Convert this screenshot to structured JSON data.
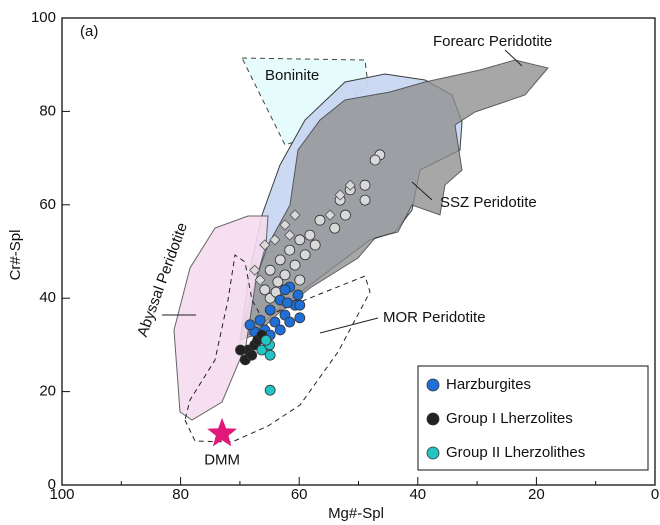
{
  "chart_data": {
    "type": "scatter",
    "panel_label": "(a)",
    "xlabel": "Mg#-Spl",
    "ylabel": "Cr#-Spl",
    "xlim": [
      100,
      0
    ],
    "ylim": [
      0,
      100
    ],
    "xticks": [
      100,
      80,
      60,
      40,
      20,
      0
    ],
    "xticks_minor": [
      90,
      70,
      50,
      30,
      10
    ],
    "yticks": [
      0,
      20,
      40,
      60,
      80,
      100
    ],
    "field_labels": [
      "Forearc Peridotite",
      "Boninite",
      "SSZ Peridotite",
      "Abyssal Peridotite",
      "MOR Peridotite"
    ],
    "series": [
      {
        "marker": "circle",
        "color": "#d9d9d9",
        "x": [
          46.4,
          47.2,
          48.9,
          51.4,
          48.9,
          53.1,
          52.2,
          56.5,
          54.0,
          58.2,
          59.9,
          57.3,
          61.6,
          59.0,
          63.2,
          60.7,
          64.9,
          62.4,
          59.9,
          63.6,
          65.8,
          64.9,
          63.9
        ],
        "y": [
          70.7,
          69.6,
          64.2,
          63.2,
          61.0,
          61.0,
          57.8,
          56.7,
          55.0,
          53.5,
          52.5,
          51.4,
          50.3,
          49.3,
          48.2,
          47.1,
          46.0,
          45.0,
          43.9,
          43.5,
          41.8,
          40.0,
          41.3
        ]
      },
      {
        "marker": "diamond",
        "color": "#d9d9d9",
        "x": [
          51.4,
          53.1,
          60.7,
          62.4,
          64.1,
          65.8,
          61.6,
          54.8,
          67.5,
          66.6
        ],
        "y": [
          64.2,
          62.1,
          57.8,
          55.7,
          52.5,
          51.4,
          53.5,
          57.8,
          46.0,
          43.9
        ]
      },
      {
        "name": "Harzburgites",
        "marker": "circle",
        "color": "#1f6fd6",
        "x": [
          61.6,
          62.4,
          60.2,
          63.2,
          60.7,
          59.9,
          64.9,
          62.4,
          59.9,
          66.6,
          64.1,
          61.6,
          65.8,
          63.2,
          67.5,
          64.9,
          68.3,
          62.0
        ],
        "y": [
          42.4,
          41.8,
          40.7,
          39.6,
          38.5,
          38.5,
          37.5,
          36.4,
          35.8,
          35.3,
          34.9,
          34.9,
          33.2,
          33.2,
          32.8,
          32.1,
          34.3,
          39.0
        ]
      },
      {
        "name": "Group I Lherzolites",
        "marker": "circle",
        "color": "#222222",
        "x": [
          69.1,
          68.6,
          67.5,
          67.0,
          66.3,
          68.0,
          69.9
        ],
        "y": [
          26.8,
          28.9,
          30.0,
          31.0,
          32.1,
          27.8,
          28.9
        ]
      },
      {
        "name": "Group II Lherzolithes",
        "marker": "circle",
        "color": "#22c4c4",
        "x": [
          66.3,
          65.0,
          64.9,
          65.6,
          64.9
        ],
        "y": [
          28.9,
          30.0,
          27.8,
          31.0,
          20.3
        ]
      }
    ],
    "reference_point": {
      "label": "DMM",
      "marker": "star",
      "color": "#e0187a",
      "x": 73,
      "y": 11
    }
  }
}
